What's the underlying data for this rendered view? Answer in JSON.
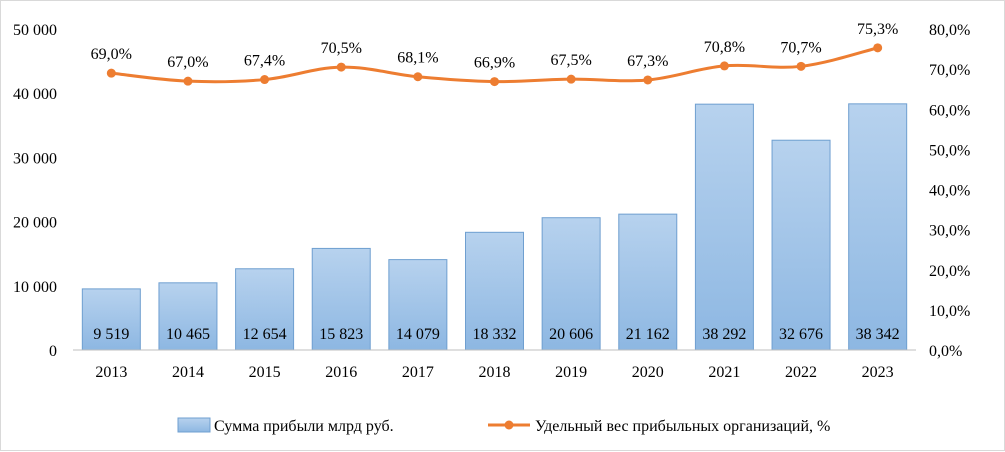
{
  "chart_data": {
    "type": "bar+line",
    "categories": [
      "2013",
      "2014",
      "2015",
      "2016",
      "2017",
      "2018",
      "2019",
      "2020",
      "2021",
      "2022",
      "2023"
    ],
    "series": [
      {
        "name": "Сумма прибыли млрд руб.",
        "type": "bar",
        "axis": "left",
        "values": [
          9519,
          10465,
          12654,
          15823,
          14079,
          18332,
          20606,
          21162,
          38292,
          32676,
          38342
        ],
        "labels": [
          "9 519",
          "10 465",
          "12 654",
          "15 823",
          "14 079",
          "18 332",
          "20 606",
          "21 162",
          "38 292",
          "32 676",
          "38 342"
        ],
        "color": "#9dc3e6"
      },
      {
        "name": "Удельный вес прибыльных организаций, %",
        "type": "line",
        "axis": "right",
        "values": [
          69.0,
          67.0,
          67.4,
          70.5,
          68.1,
          66.9,
          67.5,
          67.3,
          70.8,
          70.7,
          75.3
        ],
        "labels": [
          "69,0%",
          "67,0%",
          "67,4%",
          "70,5%",
          "68,1%",
          "66,9%",
          "67,5%",
          "67,3%",
          "70,8%",
          "70,7%",
          "75,3%"
        ],
        "color": "#ed7d31"
      }
    ],
    "y_left": {
      "ylim": [
        0,
        50000
      ],
      "ticks": [
        0,
        10000,
        20000,
        30000,
        40000,
        50000
      ],
      "tick_labels": [
        "0",
        "10 000",
        "20 000",
        "30 000",
        "40 000",
        "50 000"
      ]
    },
    "y_right": {
      "ylim": [
        0,
        80
      ],
      "ticks": [
        0,
        10,
        20,
        30,
        40,
        50,
        60,
        70,
        80
      ],
      "tick_labels": [
        "0,0%",
        "10,0%",
        "20,0%",
        "30,0%",
        "40,0%",
        "50,0%",
        "60,0%",
        "70,0%",
        "80,0%"
      ]
    },
    "legend_position": "bottom",
    "grid": false
  }
}
